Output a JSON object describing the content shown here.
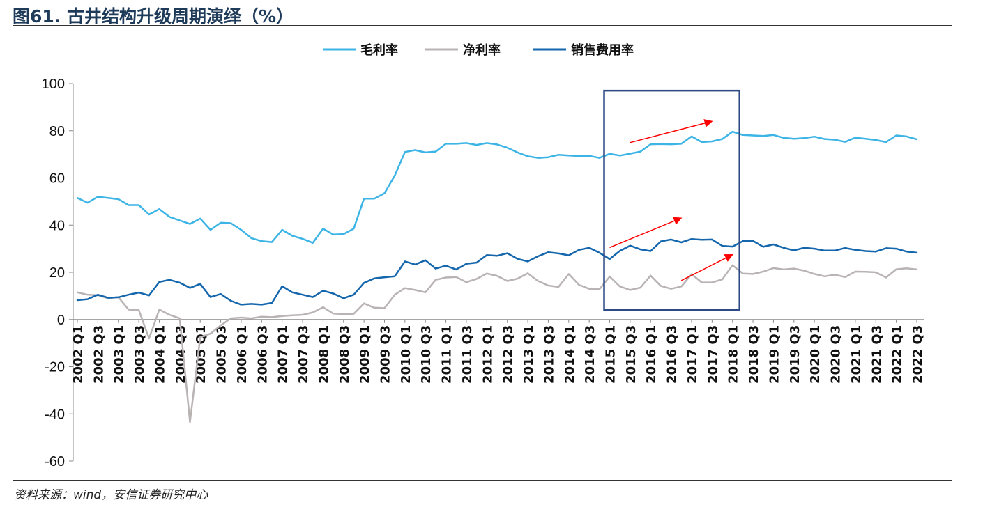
{
  "title": "图61. 古井结构升级周期演绎（%）",
  "source": "资料来源：wind，安信证券研究中心",
  "chart_data": {
    "type": "line",
    "title": "图61. 古井结构升级周期演绎（%）",
    "xlabel": "",
    "ylabel": "",
    "ylim": [
      -60,
      100
    ],
    "yticks": [
      -60,
      -40,
      -20,
      0,
      20,
      40,
      60,
      80,
      100
    ],
    "grid": false,
    "legend_position": "top-center",
    "x": [
      "2002 Q1",
      "2002 Q2",
      "2002 Q3",
      "2002 Q4",
      "2003 Q1",
      "2003 Q2",
      "2003 Q3",
      "2003 Q4",
      "2004 Q1",
      "2004 Q2",
      "2004 Q3",
      "2004 Q4",
      "2005 Q1",
      "2005 Q2",
      "2005 Q3",
      "2005 Q4",
      "2006 Q1",
      "2006 Q2",
      "2006 Q3",
      "2006 Q4",
      "2007 Q1",
      "2007 Q2",
      "2007 Q3",
      "2007 Q4",
      "2008 Q1",
      "2008 Q2",
      "2008 Q3",
      "2008 Q4",
      "2009 Q1",
      "2009 Q2",
      "2009 Q3",
      "2009 Q4",
      "2010 Q1",
      "2010 Q2",
      "2010 Q3",
      "2010 Q4",
      "2011 Q1",
      "2011 Q2",
      "2011 Q3",
      "2011 Q4",
      "2012 Q1",
      "2012 Q2",
      "2012 Q3",
      "2012 Q4",
      "2013 Q1",
      "2013 Q2",
      "2013 Q3",
      "2013 Q4",
      "2014 Q1",
      "2014 Q2",
      "2014 Q3",
      "2014 Q4",
      "2015 Q1",
      "2015 Q2",
      "2015 Q3",
      "2015 Q4",
      "2016 Q1",
      "2016 Q2",
      "2016 Q3",
      "2016 Q4",
      "2017 Q1",
      "2017 Q2",
      "2017 Q3",
      "2017 Q4",
      "2018 Q1",
      "2018 Q2",
      "2018 Q3",
      "2018 Q4",
      "2019 Q1",
      "2019 Q2",
      "2019 Q3",
      "2019 Q4",
      "2020 Q1",
      "2020 Q2",
      "2020 Q3",
      "2020 Q4",
      "2021 Q1",
      "2021 Q2",
      "2021 Q3",
      "2021 Q4",
      "2022 Q1",
      "2022 Q2",
      "2022 Q3"
    ],
    "tick_labels": [
      "2002 Q1",
      "2002 Q3",
      "2003 Q1",
      "2003 Q3",
      "2004 Q1",
      "2004 Q3",
      "2005 Q1",
      "2005 Q3",
      "2006 Q1",
      "2006 Q3",
      "2007 Q1",
      "2007 Q3",
      "2008 Q1",
      "2008 Q3",
      "2009 Q1",
      "2009 Q3",
      "2010 Q1",
      "2010 Q3",
      "2011 Q1",
      "2011 Q3",
      "2012 Q1",
      "2012 Q3",
      "2013 Q1",
      "2013 Q3",
      "2014 Q1",
      "2014 Q3",
      "2015 Q1",
      "2015 Q3",
      "2016 Q1",
      "2016 Q3",
      "2017 Q1",
      "2017 Q3",
      "2018 Q1",
      "2018 Q3",
      "2019 Q1",
      "2019 Q3",
      "2020 Q1",
      "2020 Q3",
      "2021 Q1",
      "2021 Q3",
      "2022 Q1",
      "2022 Q3"
    ],
    "series": [
      {
        "name": "毛利率",
        "color": "#3cb4e5",
        "values": [
          51.5,
          49.5,
          52,
          51.5,
          51,
          48.5,
          48.5,
          44.5,
          46.8,
          43.5,
          42,
          40.5,
          42.8,
          38,
          41,
          40.8,
          38,
          34.5,
          33.2,
          32.8,
          38,
          35.5,
          34.2,
          32.5,
          38.5,
          36,
          36.2,
          38.5,
          51.2,
          51.2,
          53.5,
          61,
          71,
          71.8,
          70.8,
          71.2,
          74.5,
          74.5,
          74.8,
          74,
          74.8,
          74.2,
          72.8,
          70.8,
          69.2,
          68.5,
          68.8,
          69.8,
          69.5,
          69.3,
          69.4,
          68.5,
          70.2,
          69.5,
          70.3,
          71.2,
          74.3,
          74.4,
          74.3,
          74.5,
          77.6,
          75.2,
          75.5,
          76.5,
          79.6,
          78.2,
          78,
          77.8,
          78.2,
          77,
          76.6,
          76.9,
          77.5,
          76.5,
          76.2,
          75.3,
          77.1,
          76.6,
          76.1,
          75.2,
          78,
          77.6,
          76.4
        ]
      },
      {
        "name": "净利率",
        "color": "#b9b3b4",
        "values": [
          11.5,
          10.5,
          10.3,
          9,
          9.5,
          4.2,
          4,
          -8,
          4.2,
          2,
          0.5,
          -43.5,
          -7.5,
          -6,
          -2.5,
          0.5,
          0.8,
          0.5,
          1.2,
          1,
          1.5,
          1.8,
          2,
          3,
          5.2,
          2.5,
          2.3,
          2.4,
          6.8,
          5,
          4.8,
          10.5,
          13.3,
          12.5,
          11.5,
          16.8,
          17.8,
          18,
          15.8,
          17.2,
          19.5,
          18.5,
          16.3,
          17.3,
          19.6,
          16.3,
          14.4,
          13.8,
          19.3,
          14.7,
          13,
          12.8,
          18.2,
          14,
          12.5,
          13.5,
          18.6,
          14.2,
          13,
          14,
          19.2,
          15.7,
          15.7,
          17,
          23,
          19.5,
          19.3,
          20.3,
          21.8,
          21.2,
          21.6,
          20.7,
          19.3,
          18.3,
          19,
          18,
          20.3,
          20.2,
          20,
          17.8,
          21.3,
          21.7,
          21.2
        ]
      },
      {
        "name": "销售费用率",
        "color": "#1466ad",
        "values": [
          8.2,
          8.6,
          10.5,
          9.2,
          9.4,
          10.5,
          11.4,
          10.2,
          15.9,
          16.8,
          15.6,
          13.4,
          15.1,
          9.5,
          10.8,
          7.9,
          6.3,
          6.6,
          6.3,
          7,
          14.1,
          11.5,
          10.5,
          9.5,
          12.2,
          11,
          9,
          10.5,
          15.5,
          17.4,
          17.9,
          18.3,
          24.6,
          23.3,
          25.1,
          21.6,
          22.8,
          21.2,
          23.6,
          24.1,
          27.3,
          27,
          28.1,
          25.7,
          24.6,
          26.8,
          28.5,
          28,
          27.2,
          29.5,
          30.4,
          28.3,
          25.6,
          29.1,
          31.3,
          29.7,
          29,
          33.1,
          33.9,
          32.7,
          34.1,
          33.8,
          33.9,
          31.2,
          30.9,
          33.2,
          33.3,
          30.8,
          31.8,
          30.4,
          29.3,
          30.4,
          30,
          29.2,
          29.2,
          30.3,
          29.5,
          29,
          28.8,
          30.2,
          30,
          28.8,
          28.3
        ]
      }
    ],
    "annotations": [
      {
        "type": "box",
        "x_start": "2015 Q1",
        "x_end": "2018 Q1",
        "y_start": 4,
        "y_end": 97,
        "color": "#2d4a86"
      },
      {
        "type": "arrow",
        "x_start": "2015 Q3",
        "y_start": 75,
        "x_end": "2017 Q3",
        "y_end": 84,
        "color": "#ff0000"
      },
      {
        "type": "arrow",
        "x_start": "2015 Q1",
        "y_start": 30.5,
        "x_end": "2016 Q4",
        "y_end": 43,
        "color": "#ff0000"
      },
      {
        "type": "arrow",
        "x_start": "2016 Q4",
        "y_start": 16.5,
        "x_end": "2018 Q1",
        "y_end": 27.5,
        "color": "#ff0000"
      }
    ]
  }
}
